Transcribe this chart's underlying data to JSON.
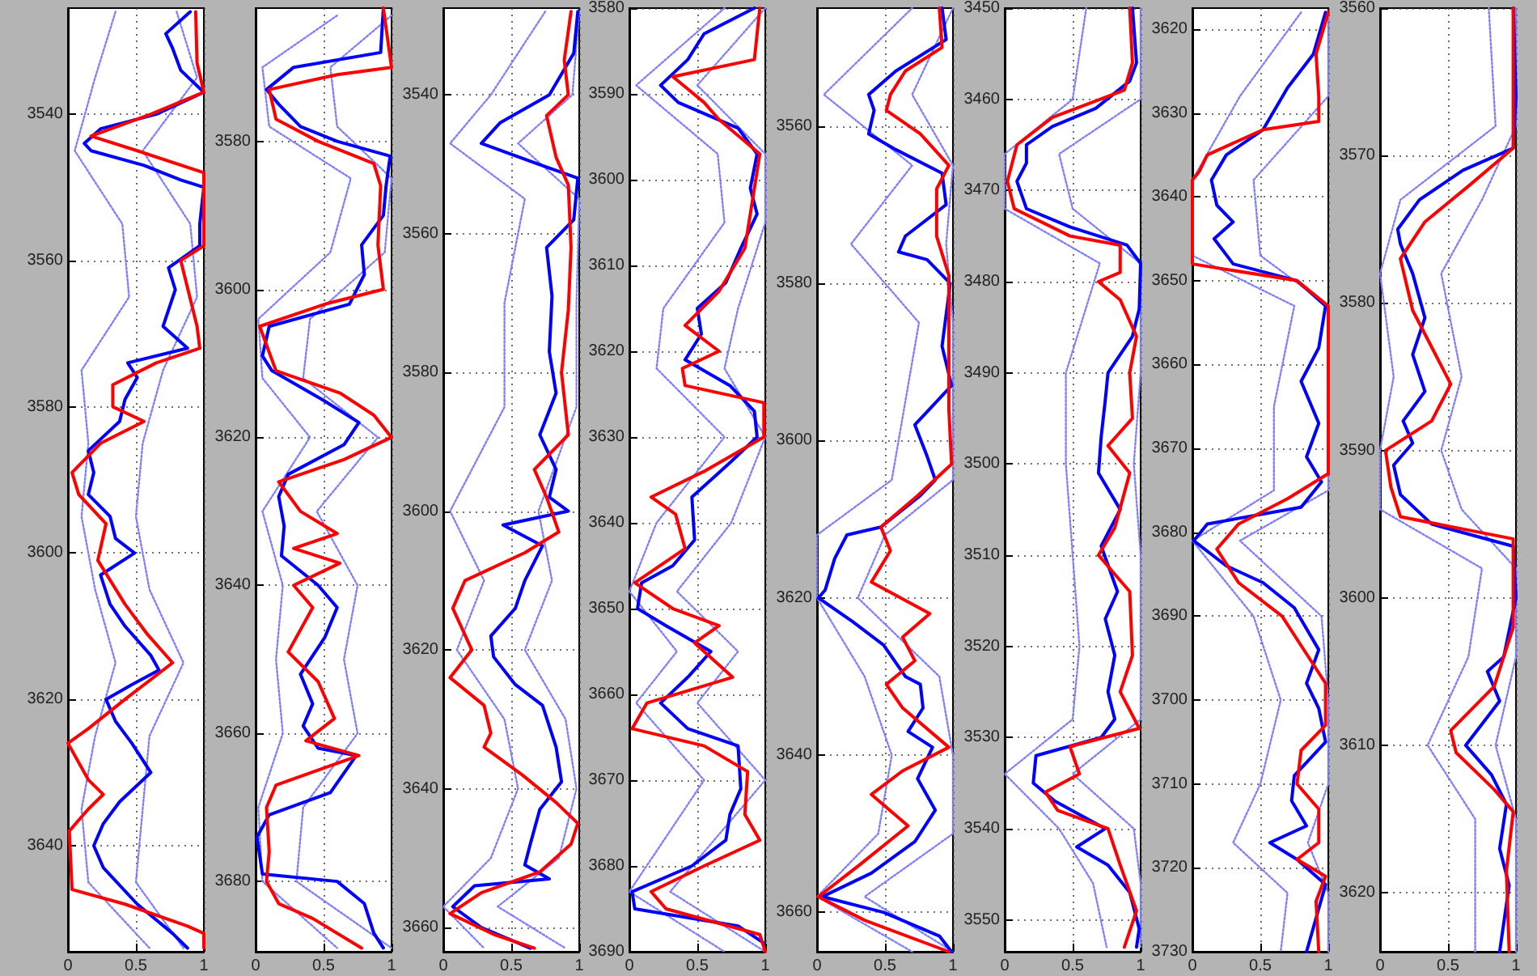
{
  "chart_data": [
    {
      "type": "line",
      "xlim": [
        0,
        1
      ],
      "xticks": [
        0,
        0.5,
        1
      ],
      "ylim": [
        3654.5,
        3525.5
      ],
      "yticks": [
        3540,
        3560,
        3580,
        3600,
        3620,
        3640
      ],
      "grid": true,
      "marker": "none",
      "line_style": "solid",
      "series": [
        {
          "color": "#8080ff",
          "line_style": "dotted",
          "x": [
            0.35,
            0.2,
            0.05,
            0.4,
            0.45,
            0.1,
            0.15,
            0.1,
            0.2,
            0.35,
            0.2,
            0.1,
            0.15,
            0.6
          ],
          "values": [
            3526,
            3535,
            3545,
            3555,
            3565,
            3575,
            3585,
            3595,
            3605,
            3615,
            3625,
            3635,
            3645,
            3654
          ]
        },
        {
          "color": "#8080ff",
          "line_style": "dotted",
          "x": [
            0.8,
            0.95,
            0.55,
            0.9,
            0.95,
            0.7,
            0.55,
            0.5,
            0.6,
            0.85,
            0.6,
            0.55,
            0.5,
            0.85
          ],
          "values": [
            3526,
            3535,
            3545,
            3555,
            3565,
            3575,
            3585,
            3595,
            3605,
            3615,
            3625,
            3635,
            3645,
            3654
          ]
        },
        {
          "color": "#0000ff",
          "x": [
            0.9,
            0.72,
            0.77,
            0.83,
            1,
            0.65,
            0.24,
            0.12,
            0.17,
            0.56,
            0.83,
            1,
            0.97,
            0.97,
            0.74,
            0.79,
            0.7,
            0.88,
            0.44,
            0.51,
            0.42,
            0.38,
            0.15,
            0.19,
            0.15,
            0.31,
            0.35,
            0.49,
            0.24,
            0.31,
            0.42,
            0.61,
            0.67,
            0.47,
            0.28,
            0.35,
            0.47,
            0.61,
            0.38,
            0.26,
            0.19,
            0.26,
            0.51,
            0.77,
            0.88
          ],
          "values": [
            3526,
            3529,
            3531,
            3534,
            3537,
            3540,
            3542,
            3544,
            3545,
            3547,
            3549,
            3550,
            3555,
            3558,
            3561,
            3564,
            3569,
            3572,
            3574,
            3576,
            3579,
            3582,
            3586,
            3589,
            3592,
            3595,
            3598,
            3600,
            3603,
            3607,
            3610,
            3614,
            3616,
            3618,
            3620,
            3623,
            3626,
            3630,
            3634,
            3637,
            3640,
            3643,
            3648,
            3652,
            3654
          ]
        },
        {
          "color": "#ff0000",
          "x": [
            0.94,
            0.95,
            1,
            0.61,
            0.17,
            0.51,
            1,
            1,
            0.83,
            0.95,
            0.97,
            0.65,
            0.33,
            0.33,
            0.56,
            0.24,
            0.03,
            0.08,
            0.28,
            0.22,
            0.42,
            0.58,
            0.77,
            0.42,
            0.15,
            0,
            0.15,
            0.26,
            0.15,
            0.01,
            0.03,
            0.42,
            0.88,
            1,
            1
          ],
          "values": [
            3526,
            3533,
            3537,
            3540,
            3543,
            3545,
            3548,
            3558,
            3560,
            3569,
            3572,
            3574,
            3577,
            3580,
            3582,
            3585,
            3589,
            3592,
            3596,
            3601,
            3607,
            3611,
            3615,
            3620,
            3624,
            3626,
            3631,
            3633,
            3635,
            3638,
            3646,
            3648,
            3651,
            3652,
            3654
          ]
        }
      ]
    },
    {
      "type": "line",
      "xlim": [
        0,
        1
      ],
      "xticks": [
        0,
        0.5,
        1
      ],
      "ylim": [
        3689.5,
        3562
      ],
      "yticks": [
        3580,
        3600,
        3620,
        3640,
        3660,
        3680
      ],
      "grid": true,
      "marker": "none",
      "line_style": "solid",
      "series": [
        {
          "color": "#8080ff",
          "line_style": "dotted",
          "x": [
            0.6,
            0.05,
            0.1,
            0.7,
            0.55,
            0.02,
            0.05,
            0.4,
            0.05,
            0.2,
            0.15,
            0.2,
            0.02,
            0.05,
            0.6
          ],
          "values": [
            3563,
            3570,
            3578,
            3585,
            3595,
            3604,
            3612,
            3620,
            3630,
            3640,
            3650,
            3660,
            3670,
            3680,
            3689
          ]
        },
        {
          "color": "#8080ff",
          "line_style": "dotted",
          "x": [
            1,
            0.55,
            0.6,
            1,
            0.95,
            0.4,
            0.35,
            0.9,
            0.45,
            0.75,
            0.65,
            0.75,
            0.35,
            0.3,
            1
          ],
          "values": [
            3563,
            3570,
            3578,
            3585,
            3595,
            3604,
            3612,
            3620,
            3630,
            3640,
            3650,
            3660,
            3670,
            3680,
            3689
          ]
        },
        {
          "color": "#0000ff",
          "x": [
            0.94,
            0.92,
            0.28,
            0.08,
            0.17,
            0.33,
            0.6,
            0.99,
            0.96,
            0.94,
            0.78,
            0.8,
            0.69,
            0.1,
            0.05,
            0.12,
            0.5,
            0.76,
            0.65,
            0.24,
            0.17,
            0.21,
            0.19,
            0.46,
            0.6,
            0.51,
            0.33,
            0.42,
            0.35,
            0.46,
            0.74,
            0.55,
            0.1,
            0.01,
            0.05,
            0.6,
            0.8,
            0.87,
            0.94
          ],
          "values": [
            3562,
            3568,
            3570,
            3573,
            3575,
            3578,
            3580,
            3582,
            3586,
            3590,
            3594,
            3598,
            3602,
            3605,
            3609,
            3611,
            3615,
            3618,
            3621,
            3625,
            3628,
            3632,
            3636,
            3640,
            3643,
            3647,
            3652,
            3656,
            3659,
            3662,
            3663,
            3668,
            3671,
            3674,
            3679,
            3680,
            3683,
            3687,
            3689
          ]
        },
        {
          "color": "#ff0000",
          "x": [
            0.94,
            1,
            0.6,
            0.1,
            0.15,
            0.46,
            0.87,
            0.92,
            0.9,
            0.94,
            0.51,
            0.03,
            0.15,
            0.62,
            0.87,
            1,
            0.65,
            0.17,
            0.33,
            0.6,
            0.28,
            0.62,
            0.28,
            0.42,
            0.24,
            0.46,
            0.58,
            0.37,
            0.76,
            0.15,
            0.08,
            0.1,
            0.08,
            0.17,
            0.42,
            0.78
          ],
          "values": [
            3562,
            3570,
            3571,
            3573,
            3577,
            3580,
            3583,
            3586,
            3594,
            3600,
            3602,
            3605,
            3611,
            3614,
            3617,
            3620,
            3623,
            3626,
            3630,
            3633,
            3635,
            3637,
            3640,
            3643,
            3649,
            3653,
            3658,
            3661,
            3663,
            3667,
            3670,
            3676,
            3680,
            3683,
            3685,
            3689
          ]
        }
      ]
    },
    {
      "type": "line",
      "xlim": [
        0,
        1
      ],
      "xticks": [
        0,
        0.5,
        1
      ],
      "ylim": [
        3663.5,
        3527.5
      ],
      "yticks": [
        3540,
        3560,
        3580,
        3600,
        3620,
        3640,
        3660
      ],
      "grid": true,
      "marker": "none",
      "line_style": "solid",
      "series": [
        {
          "color": "#8080ff",
          "line_style": "dotted",
          "x": [
            0.75,
            0.35,
            0.05,
            0.6,
            0.45,
            0.45,
            0.05,
            0.3,
            0.1,
            0.45,
            0.55,
            0.35,
            0,
            0.3
          ],
          "values": [
            3528,
            3540,
            3547,
            3555,
            3570,
            3585,
            3600,
            3610,
            3620,
            3630,
            3640,
            3650,
            3657,
            3663
          ]
        },
        {
          "color": "#8080ff",
          "line_style": "dotted",
          "x": [
            1,
            0.95,
            0.55,
            1,
            0.98,
            0.98,
            0.7,
            0.8,
            0.6,
            0.9,
            0.98,
            0.85,
            0.4,
            0.9
          ],
          "values": [
            3528,
            3540,
            3547,
            3555,
            3570,
            3585,
            3600,
            3610,
            3620,
            3630,
            3640,
            3650,
            3657,
            3663
          ]
        },
        {
          "color": "#0000ff",
          "x": [
            0.99,
            0.96,
            0.78,
            0.42,
            0.28,
            0.7,
            0.99,
            0.96,
            0.76,
            0.8,
            0.78,
            0.83,
            0.71,
            0.83,
            0.78,
            0.92,
            0.44,
            0.73,
            0.6,
            0.53,
            0.35,
            0.37,
            0.53,
            0.73,
            0.83,
            0.87,
            0.71,
            0.64,
            0.6,
            0.78,
            0.23,
            0.07,
            0.28,
            0.64
          ],
          "values": [
            3528,
            3534,
            3540,
            3544,
            3547,
            3550,
            3552,
            3558,
            3562,
            3569,
            3577,
            3583,
            3589,
            3594,
            3598,
            3600,
            3602,
            3605,
            3610,
            3614,
            3618,
            3621,
            3625,
            3628,
            3634,
            3639,
            3643,
            3648,
            3651,
            3653,
            3654,
            3657,
            3660,
            3663
          ]
        },
        {
          "color": "#ff0000",
          "x": [
            0.94,
            0.89,
            0.92,
            0.76,
            0.83,
            0.92,
            0.94,
            0.92,
            0.87,
            0.92,
            0.67,
            0.76,
            0.85,
            0.6,
            0.16,
            0.07,
            0.21,
            0.05,
            0.3,
            0.35,
            0.3,
            0.58,
            0.83,
            0.99,
            0.94,
            0.71,
            0.28,
            0.05,
            0.37,
            0.67
          ],
          "values": [
            3528,
            3535,
            3540,
            3543,
            3549,
            3553,
            3562,
            3571,
            3580,
            3589,
            3594,
            3598,
            3603,
            3606,
            3610,
            3614,
            3620,
            3624,
            3628,
            3632,
            3634,
            3638,
            3642,
            3645,
            3648,
            3652,
            3655,
            3658,
            3661,
            3663
          ]
        }
      ]
    },
    {
      "type": "line",
      "xlim": [
        0,
        1
      ],
      "xticks": [
        0,
        0.5,
        1
      ],
      "ylim": [
        3690,
        3580
      ],
      "yticks": [
        3580,
        3590,
        3600,
        3610,
        3620,
        3630,
        3640,
        3650,
        3660,
        3670,
        3680,
        3690
      ],
      "grid": true,
      "marker": "none",
      "line_style": "solid",
      "series": [
        {
          "color": "#8080ff",
          "line_style": "dotted",
          "x": [
            0.7,
            0.05,
            0.65,
            0.7,
            0.25,
            0.2,
            0.7,
            0.2,
            0,
            0.35,
            0.05,
            0.55,
            0,
            0.7
          ],
          "values": [
            3580,
            3589,
            3597,
            3605,
            3615,
            3622,
            3630,
            3640,
            3648,
            3655,
            3661,
            3670,
            3683,
            3690
          ]
        },
        {
          "color": "#8080ff",
          "line_style": "dotted",
          "x": [
            1,
            0.5,
            1,
            1,
            0.8,
            0.7,
            1,
            0.75,
            0.35,
            0.8,
            0.5,
            1,
            0.3,
            1
          ],
          "values": [
            3580,
            3589,
            3597,
            3605,
            3615,
            3622,
            3630,
            3640,
            3648,
            3655,
            3661,
            3670,
            3683,
            3690
          ]
        },
        {
          "color": "#0000ff",
          "x": [
            0.92,
            0.55,
            0.43,
            0.23,
            0.36,
            0.8,
            0.94,
            0.89,
            0.94,
            0.82,
            0.71,
            0.5,
            0.53,
            0.41,
            0.74,
            0.92,
            0.94,
            0.74,
            0.46,
            0.48,
            0.32,
            0.09,
            0.06,
            0.27,
            0.6,
            0.43,
            0.23,
            0.43,
            0.8,
            0.82,
            0.74,
            0.71,
            0.46,
            0.02,
            0.04,
            0.8,
            0.99
          ],
          "values": [
            3580,
            3583,
            3586,
            3589,
            3591,
            3594,
            3597,
            3601,
            3604,
            3608,
            3612,
            3615,
            3618,
            3621,
            3624,
            3627,
            3630,
            3633,
            3637,
            3642,
            3645,
            3647,
            3650,
            3652,
            3655,
            3658,
            3661,
            3664,
            3666,
            3671,
            3674,
            3677,
            3680,
            3683,
            3685,
            3687,
            3689
          ]
        },
        {
          "color": "#ff0000",
          "x": [
            0.96,
            0.92,
            0.32,
            0.55,
            0.66,
            0.96,
            0.92,
            0.85,
            0.66,
            0.41,
            0.66,
            0.39,
            0.41,
            0.99,
            0.99,
            0.55,
            0.16,
            0.34,
            0.41,
            0.04,
            0.32,
            0.66,
            0.48,
            0.76,
            0.13,
            0.02,
            0.55,
            0.87,
            0.85,
            0.96,
            0.55,
            0.16,
            0.27,
            0.96,
            1
          ],
          "values": [
            3580,
            3586,
            3588,
            3591,
            3593,
            3597,
            3601,
            3608,
            3613,
            3617,
            3620,
            3622,
            3624,
            3626,
            3630,
            3634,
            3637,
            3639,
            3643,
            3647,
            3650,
            3652,
            3654,
            3658,
            3661,
            3664,
            3666,
            3669,
            3674,
            3677,
            3680,
            3683,
            3685,
            3688,
            3690
          ]
        }
      ]
    },
    {
      "type": "line",
      "xlim": [
        0,
        1
      ],
      "xticks": [
        0,
        0.5,
        1
      ],
      "ylim": [
        3665,
        3545
      ],
      "yticks": [
        3560,
        3580,
        3600,
        3620,
        3640,
        3660
      ],
      "grid": true,
      "marker": "none",
      "line_style": "solid",
      "series": [
        {
          "color": "#8080ff",
          "line_style": "dotted",
          "x": [
            0.7,
            0.05,
            0.7,
            0.25,
            0.75,
            0.65,
            0.55,
            0,
            0,
            0.35,
            0.55,
            0.45,
            0,
            0.7
          ],
          "values": [
            3545,
            3556,
            3565,
            3575,
            3585,
            3595,
            3605,
            3612,
            3620,
            3630,
            3640,
            3650,
            3658,
            3665
          ]
        },
        {
          "color": "#8080ff",
          "line_style": "dotted",
          "x": [
            1,
            0.7,
            1,
            0.95,
            1,
            1,
            1,
            0.5,
            0.3,
            0.9,
            1,
            1,
            0.35,
            1
          ],
          "values": [
            3545,
            3556,
            3565,
            3575,
            3585,
            3595,
            3605,
            3612,
            3620,
            3630,
            3640,
            3650,
            3658,
            3665
          ]
        },
        {
          "color": "#0000ff",
          "x": [
            0.92,
            0.95,
            0.58,
            0.38,
            0.42,
            0.38,
            0.58,
            0.92,
            0.95,
            0.65,
            0.6,
            0.81,
            0.98,
            0.95,
            0.92,
            0.99,
            0.72,
            0.81,
            0.87,
            0.76,
            0.47,
            0.22,
            0.13,
            0.06,
            0.01,
            0.26,
            0.49,
            0.65,
            0.76,
            0.78,
            0.67,
            0.85,
            0.74,
            0.87,
            0.72,
            0.4,
            0.04,
            0.49,
            0.9,
            0.99
          ],
          "values": [
            3545,
            3549,
            3553,
            3556,
            3558,
            3561,
            3563,
            3566,
            3570,
            3574,
            3576,
            3577,
            3580,
            3584,
            3588,
            3593,
            3598,
            3602,
            3605,
            3607,
            3611,
            3612,
            3615,
            3619,
            3620,
            3623,
            3626,
            3630,
            3631,
            3634,
            3637,
            3639,
            3643,
            3647,
            3651,
            3655,
            3658,
            3660,
            3663,
            3665
          ]
        },
        {
          "color": "#ff0000",
          "x": [
            0.9,
            0.92,
            0.65,
            0.54,
            0.51,
            0.76,
            0.97,
            0.88,
            0.88,
            0.97,
            0.97,
            0.97,
            0.99,
            0.74,
            0.47,
            0.54,
            0.4,
            0.83,
            0.63,
            0.72,
            0.51,
            0.63,
            0.97,
            0.63,
            0.4,
            0.67,
            0.31,
            0.01,
            0.35,
            0.97
          ],
          "values": [
            3545,
            3550,
            3553,
            3556,
            3558,
            3561,
            3565,
            3568,
            3574,
            3579,
            3588,
            3596,
            3603,
            3607,
            3611,
            3614,
            3618,
            3622,
            3625,
            3628,
            3631,
            3634,
            3639,
            3642,
            3645,
            3649,
            3654,
            3658,
            3661,
            3665
          ]
        }
      ]
    },
    {
      "type": "line",
      "xlim": [
        0,
        1
      ],
      "xticks": [
        0,
        0.5,
        1
      ],
      "ylim": [
        3553.5,
        3450
      ],
      "yticks": [
        3450,
        3460,
        3470,
        3480,
        3490,
        3500,
        3510,
        3520,
        3530,
        3540,
        3550
      ],
      "grid": true,
      "marker": "none",
      "line_style": "solid",
      "series": [
        {
          "color": "#8080ff",
          "line_style": "dotted",
          "x": [
            0.6,
            0.5,
            0,
            0,
            0.7,
            0.45,
            0.45,
            0.5,
            0.55,
            0.5,
            0,
            0.4,
            0.65,
            0.75
          ],
          "values": [
            3450,
            3460,
            3466,
            3472,
            3478,
            3490,
            3500,
            3510,
            3520,
            3528,
            3534,
            3540,
            3546,
            3553
          ]
        },
        {
          "color": "#8080ff",
          "line_style": "dotted",
          "x": [
            1,
            1,
            0.4,
            0.5,
            1,
            1,
            0.95,
            1,
            1,
            1,
            0.5,
            0.95,
            1,
            1
          ],
          "values": [
            3450,
            3460,
            3466,
            3472,
            3478,
            3490,
            3500,
            3510,
            3520,
            3528,
            3534,
            3540,
            3546,
            3553
          ]
        },
        {
          "color": "#0000ff",
          "x": [
            0.94,
            0.97,
            0.92,
            0.67,
            0.35,
            0.16,
            0.16,
            0.09,
            0.16,
            0.48,
            0.9,
            1,
            0.99,
            0.94,
            0.76,
            0.74,
            0.71,
            0.69,
            0.85,
            0.71,
            0.83,
            0.74,
            0.81,
            0.76,
            0.81,
            0.71,
            0.23,
            0.21,
            0.37,
            0.74,
            0.53,
            0.76,
            0.92,
            0.99,
            0.97
          ],
          "values": [
            3450,
            3456,
            3458,
            3461,
            3463,
            3465,
            3467,
            3469,
            3472,
            3474,
            3476,
            3478,
            3483,
            3486,
            3490,
            3493,
            3497,
            3501,
            3505,
            3509,
            3514,
            3517,
            3521,
            3525,
            3528,
            3530,
            3532,
            3535,
            3537,
            3540,
            3542,
            3544,
            3547,
            3551,
            3553
          ]
        },
        {
          "color": "#ff0000",
          "x": [
            0.92,
            0.94,
            0.88,
            0.35,
            0.09,
            0.02,
            0.07,
            0.48,
            0.85,
            0.85,
            0.69,
            0.85,
            0.97,
            0.92,
            0.94,
            0.76,
            0.92,
            0.81,
            0.69,
            0.92,
            0.94,
            0.85,
            0.99,
            0.48,
            0.55,
            0.3,
            0.39,
            0.76,
            0.85,
            0.97,
            0.88
          ],
          "values": [
            3450,
            3456,
            3459,
            3462,
            3465,
            3469,
            3472,
            3475,
            3476,
            3479,
            3480,
            3482,
            3486,
            3490,
            3495,
            3498,
            3501,
            3507,
            3510,
            3514,
            3521,
            3525,
            3529,
            3531,
            3534,
            3536,
            3538,
            3540,
            3544,
            3549,
            3553
          ]
        }
      ]
    },
    {
      "type": "line",
      "xlim": [
        0,
        1
      ],
      "xticks": [
        0,
        0.5,
        1
      ],
      "ylim": [
        3730,
        3617.5
      ],
      "yticks": [
        3620,
        3630,
        3640,
        3650,
        3660,
        3670,
        3680,
        3690,
        3700,
        3710,
        3720,
        3730
      ],
      "grid": true,
      "marker": "none",
      "line_style": "solid",
      "series": [
        {
          "color": "#8080ff",
          "line_style": "dotted",
          "x": [
            0.8,
            0.35,
            0,
            0,
            0.75,
            0.6,
            0.6,
            0,
            0.45,
            0.65,
            0.5,
            0.3,
            0.7,
            0.65
          ],
          "values": [
            3618,
            3628,
            3638,
            3647,
            3653,
            3665,
            3675,
            3681,
            3690,
            3700,
            3710,
            3717,
            3723,
            3730
          ]
        },
        {
          "color": "#8080ff",
          "line_style": "dotted",
          "x": [
            1,
            1,
            0.45,
            0.5,
            1,
            1,
            1,
            0.35,
            0.95,
            1,
            1,
            0.85,
            1,
            1
          ],
          "values": [
            3618,
            3628,
            3638,
            3647,
            3653,
            3665,
            3675,
            3681,
            3690,
            3700,
            3710,
            3717,
            3723,
            3730
          ]
        },
        {
          "color": "#0000ff",
          "x": [
            0.98,
            0.89,
            0.7,
            0.52,
            0.25,
            0.14,
            0.18,
            0.3,
            0.16,
            0.3,
            0.77,
            0.98,
            0.93,
            0.8,
            0.93,
            0.84,
            0.95,
            0.8,
            0.11,
            0.01,
            0.25,
            0.52,
            0.75,
            0.93,
            0.84,
            0.93,
            0.98,
            0.75,
            0.73,
            0.84,
            0.57,
            0.77,
            0.98,
            0.91,
            0.84
          ],
          "values": [
            3618,
            3623,
            3627,
            3632,
            3635,
            3638,
            3641,
            3643,
            3645,
            3648,
            3650,
            3653,
            3658,
            3662,
            3667,
            3671,
            3674,
            3677,
            3679,
            3681,
            3684,
            3686,
            3689,
            3694,
            3698,
            3701,
            3705,
            3709,
            3712,
            3715,
            3717,
            3719,
            3722,
            3726,
            3730
          ]
        },
        {
          "color": "#ff0000",
          "x": [
            1,
            0.91,
            0.93,
            0.93,
            0.52,
            0.11,
            0.05,
            0,
            0,
            0.77,
            1,
            1,
            0.7,
            0.34,
            0.18,
            0.34,
            0.66,
            0.86,
            0.98,
            0.98,
            0.8,
            0.77,
            0.93,
            0.93,
            0.77,
            0.98,
            0.91,
            0.93
          ],
          "values": [
            3618,
            3623,
            3628,
            3631,
            3632,
            3635,
            3637,
            3638,
            3648,
            3650,
            3653,
            3673,
            3676,
            3679,
            3682,
            3686,
            3690,
            3695,
            3698,
            3703,
            3706,
            3710,
            3713,
            3717,
            3719,
            3721,
            3724,
            3730
          ]
        }
      ]
    },
    {
      "type": "line",
      "xlim": [
        0,
        1
      ],
      "xticks": [
        0,
        0.5,
        1
      ],
      "ylim": [
        3624,
        3560
      ],
      "yticks": [
        3560,
        3570,
        3580,
        3590,
        3600,
        3610,
        3620
      ],
      "grid": true,
      "marker": "none",
      "line_style": "solid",
      "series": [
        {
          "color": "#8080ff",
          "line_style": "dotted",
          "x": [
            0.8,
            0.85,
            0.15,
            0,
            0.1,
            0,
            0,
            0.75,
            0.65,
            0.35,
            0.7,
            0.7
          ],
          "values": [
            3560,
            3568,
            3573,
            3578,
            3585,
            3590,
            3594,
            3598,
            3604,
            3610,
            3615,
            3624
          ]
        },
        {
          "color": "#8080ff",
          "line_style": "dotted",
          "x": [
            1,
            1,
            0.75,
            0.45,
            0.6,
            0.45,
            0.6,
            1,
            1,
            0.85,
            1,
            1
          ],
          "values": [
            3560,
            3568,
            3573,
            3578,
            3585,
            3590,
            3594,
            3598,
            3604,
            3610,
            3615,
            3624
          ]
        },
        {
          "color": "#0000ff",
          "x": [
            0.98,
            1,
            0.98,
            0.61,
            0.29,
            0.13,
            0.15,
            0.24,
            0.33,
            0.24,
            0.33,
            0.17,
            0.24,
            0.1,
            0.15,
            0.38,
            0.98,
            1,
            0.91,
            0.79,
            0.88,
            0.63,
            0.82,
            0.93,
            0.88,
            0.95,
            0.88
          ],
          "values": [
            3560,
            3566,
            3569.5,
            3571,
            3573,
            3575,
            3576,
            3578,
            3581,
            3583.5,
            3586,
            3588,
            3589.5,
            3591,
            3593,
            3595,
            3596.5,
            3600,
            3604,
            3605,
            3607,
            3610,
            3612,
            3614,
            3617,
            3619.5,
            3624
          ]
        },
        {
          "color": "#ff0000",
          "x": [
            0.98,
            0.98,
            0.66,
            0.33,
            0.15,
            0.24,
            0.38,
            0.52,
            0.38,
            0.04,
            0.08,
            0.15,
            0.98,
            0.98,
            0.84,
            0.52,
            0.56,
            0.84,
            0.98,
            0.93,
            0.95
          ],
          "values": [
            3560,
            3569.5,
            3572,
            3574.5,
            3577,
            3580.5,
            3583,
            3585.5,
            3588,
            3590,
            3592.5,
            3594.5,
            3596,
            3602,
            3606,
            3609,
            3610.5,
            3613,
            3614.5,
            3618.5,
            3624
          ]
        }
      ]
    }
  ]
}
